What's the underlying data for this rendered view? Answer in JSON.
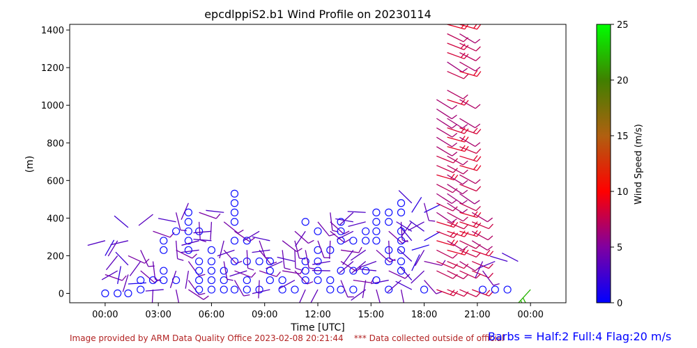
{
  "chart_data": {
    "type": "scatter",
    "title": "epcdlppiS2.b1 Wind Profile on 20230114",
    "xlabel": "Time [UTC]",
    "ylabel": "(m)",
    "x_ticks": [
      "00:00",
      "03:00",
      "06:00",
      "09:00",
      "12:00",
      "15:00",
      "18:00",
      "21:00",
      "00:00"
    ],
    "x_range_hours": [
      -2,
      26
    ],
    "ylim": [
      -50,
      1430
    ],
    "y_ticks": [
      0,
      200,
      400,
      600,
      800,
      1000,
      1200,
      1400
    ],
    "colorbar": {
      "label": "Wind Speed (m/s)",
      "range": [
        0,
        25
      ],
      "ticks": [
        0,
        5,
        10,
        15,
        20,
        25
      ],
      "colors": [
        "#0000ff",
        "#8000a0",
        "#ff0000",
        "#008000",
        "#00ff00"
      ]
    },
    "barb_legend": "Barbs = Half:2 Full:4 Flag:20 m/s",
    "calm_symbol": "circle",
    "series": [
      {
        "x": 0.0,
        "y": [
          0,
          100,
          200,
          280
        ]
      },
      {
        "x": 0.7,
        "y": [
          0,
          50,
          120,
          200,
          280
        ]
      },
      {
        "x": 1.3,
        "y": [
          0,
          50,
          100,
          150,
          200,
          280,
          350
        ]
      },
      {
        "x": 2.0,
        "y": [
          20,
          70,
          120,
          170,
          230
        ]
      },
      {
        "x": 2.7,
        "y": [
          20,
          70,
          170,
          330,
          420
        ]
      },
      {
        "x": 3.3,
        "y": [
          20,
          70,
          120,
          230,
          280
        ]
      },
      {
        "x": 4.0,
        "y": [
          20,
          70,
          120,
          230,
          280,
          330,
          380,
          430
        ]
      },
      {
        "x": 4.7,
        "y": [
          20,
          70,
          120,
          170,
          230,
          280,
          330,
          380,
          430,
          480
        ]
      },
      {
        "x": 5.3,
        "y": [
          20,
          70,
          120,
          170,
          230,
          280,
          330,
          380,
          430
        ]
      },
      {
        "x": 6.0,
        "y": [
          20,
          70,
          120,
          170,
          230,
          280,
          330,
          380
        ]
      },
      {
        "x": 6.7,
        "y": [
          20,
          70,
          120,
          170,
          230,
          280,
          380,
          430
        ]
      },
      {
        "x": 7.3,
        "y": [
          20,
          70,
          120,
          170,
          230,
          280,
          330,
          380,
          430,
          480,
          530
        ]
      },
      {
        "x": 8.0,
        "y": [
          20,
          70,
          120,
          170,
          230,
          280
        ]
      },
      {
        "x": 8.7,
        "y": [
          20,
          70,
          120,
          170,
          230,
          280,
          330
        ]
      },
      {
        "x": 9.3,
        "y": [
          20,
          70,
          120,
          170,
          230,
          280
        ]
      },
      {
        "x": 10.0,
        "y": [
          20,
          70,
          120,
          170,
          230,
          280
        ]
      },
      {
        "x": 10.7,
        "y": [
          20,
          70,
          120,
          170,
          230,
          280,
          330
        ]
      },
      {
        "x": 11.3,
        "y": [
          20,
          70,
          120,
          170,
          230,
          330,
          380
        ]
      },
      {
        "x": 12.0,
        "y": [
          20,
          70,
          120,
          170,
          230,
          280,
          330,
          380
        ]
      },
      {
        "x": 12.7,
        "y": [
          20,
          70,
          120,
          170,
          230,
          280,
          330,
          380,
          430
        ]
      },
      {
        "x": 13.3,
        "y": [
          20,
          70,
          120,
          170,
          230,
          280,
          330,
          380
        ]
      },
      {
        "x": 14.0,
        "y": [
          20,
          70,
          120,
          170,
          230,
          280,
          330,
          380,
          430
        ]
      },
      {
        "x": 14.7,
        "y": [
          20,
          70,
          120,
          170,
          230,
          280,
          330,
          380,
          430
        ]
      },
      {
        "x": 15.3,
        "y": [
          20,
          70,
          120,
          170,
          230,
          280,
          330,
          380,
          430
        ]
      },
      {
        "x": 16.0,
        "y": [
          20,
          70,
          120,
          170,
          230,
          280,
          330,
          380,
          430
        ]
      },
      {
        "x": 16.7,
        "y": [
          20,
          70,
          120,
          170,
          230,
          280,
          330,
          380,
          430,
          480
        ]
      },
      {
        "x": 17.3,
        "y": [
          20,
          70,
          120,
          170,
          230,
          280,
          330,
          380,
          430,
          480
        ]
      },
      {
        "x": 18.0,
        "y": [
          20,
          70,
          120,
          170,
          230,
          280,
          330,
          380,
          430,
          480
        ]
      },
      {
        "x": 18.7,
        "y": [
          20,
          120,
          170,
          230,
          280,
          330,
          380,
          430,
          480,
          530,
          580,
          630,
          680,
          730,
          780,
          830,
          880,
          930,
          980,
          1030
        ]
      },
      {
        "x": 19.3,
        "y": [
          20,
          120,
          170,
          230,
          280,
          330,
          380,
          430,
          480,
          530,
          580,
          630,
          680,
          730,
          780,
          830,
          880,
          930,
          1030,
          1080,
          1180,
          1230,
          1280,
          1330,
          1380,
          1430
        ]
      },
      {
        "x": 20.0,
        "y": [
          20,
          120,
          170,
          230,
          280,
          330,
          380,
          430,
          480,
          530,
          580,
          630,
          680,
          730,
          780,
          830,
          880,
          930,
          1030,
          1180,
          1230,
          1280,
          1330,
          1380,
          1430
        ]
      },
      {
        "x": 20.7,
        "y": [
          20,
          120,
          170,
          230,
          280,
          330,
          380,
          430
        ]
      },
      {
        "x": 21.3,
        "y": [
          20,
          120,
          170
        ]
      },
      {
        "x": 22.0,
        "y": [
          20,
          170
        ]
      },
      {
        "x": 22.7,
        "y": [
          20,
          170
        ]
      },
      {
        "x": 23.3,
        "y": [
          170
        ]
      },
      {
        "x": 24.0,
        "y": [
          20
        ]
      }
    ]
  },
  "footer": {
    "provider": "Image provided by ARM Data Quality Office 2023-02-08 20:21:44",
    "notice": "*** Data collected outside of official"
  }
}
